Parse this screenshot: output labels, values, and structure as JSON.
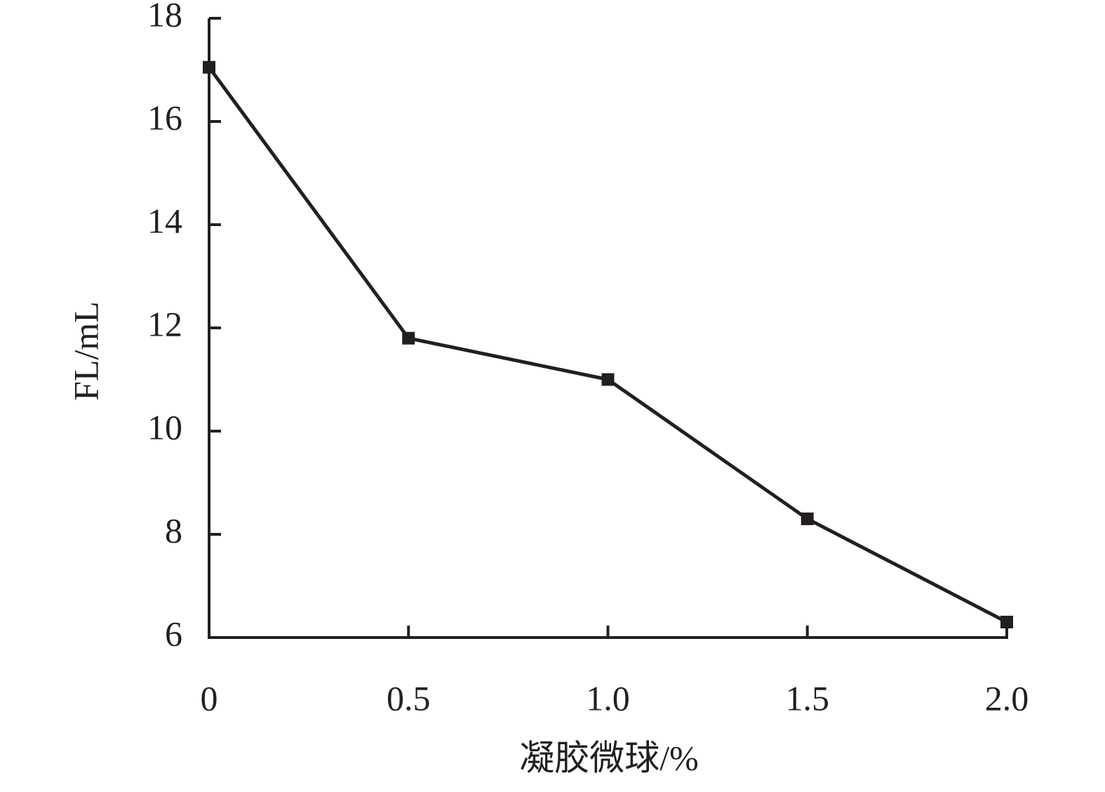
{
  "chart_data": {
    "type": "line",
    "x_label": "凝胶微球/%",
    "y_label": "FL/mL",
    "x": [
      0,
      0.5,
      1.0,
      1.5,
      2.0
    ],
    "series": [
      {
        "color": "#231f20",
        "values": [
          17.05,
          11.8,
          11.0,
          8.3,
          6.3
        ]
      }
    ],
    "xlim": [
      0,
      2
    ],
    "xticks": [
      0,
      0.5,
      {
        "value": 1,
        "label": "1.0"
      },
      1.5,
      {
        "value": 2,
        "label": "2.0"
      }
    ],
    "ylim": [
      6,
      18
    ],
    "yticks": [
      6,
      8,
      10,
      12,
      14,
      16,
      18
    ],
    "marker": "square"
  }
}
